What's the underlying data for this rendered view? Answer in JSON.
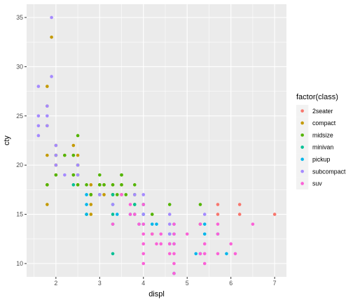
{
  "chart_data": {
    "type": "scatter",
    "xlabel": "displ",
    "ylabel": "cty",
    "xlim": [
      1.33,
      7.27
    ],
    "ylim": [
      8.65,
      36.35
    ],
    "x_ticks": [
      "2",
      "3",
      "4",
      "5",
      "6",
      "7"
    ],
    "y_ticks": [
      "10",
      "15",
      "20",
      "25",
      "30",
      "35"
    ],
    "x_tick_values": [
      2,
      3,
      4,
      5,
      6,
      7
    ],
    "y_tick_values": [
      10,
      15,
      20,
      25,
      30,
      35
    ],
    "grid": true,
    "legend": {
      "title": "factor(class)",
      "position": "right"
    },
    "series": [
      {
        "name": "2seater",
        "color": "#F8766D",
        "points": [
          [
            5.7,
            16
          ],
          [
            5.7,
            15
          ],
          [
            6.2,
            15
          ],
          [
            6.2,
            16
          ],
          [
            7.0,
            15
          ]
        ]
      },
      {
        "name": "compact",
        "color": "#C49A00",
        "points": [
          [
            1.8,
            18
          ],
          [
            1.8,
            21
          ],
          [
            2.0,
            20
          ],
          [
            2.0,
            21
          ],
          [
            2.8,
            16
          ],
          [
            2.8,
            18
          ],
          [
            3.1,
            18
          ],
          [
            1.8,
            18
          ],
          [
            1.8,
            16
          ],
          [
            2.0,
            20
          ],
          [
            2.0,
            19
          ],
          [
            2.8,
            15
          ],
          [
            2.8,
            17
          ],
          [
            3.1,
            17
          ],
          [
            1.8,
            24
          ],
          [
            1.8,
            26
          ],
          [
            1.8,
            28
          ],
          [
            1.9,
            33
          ],
          [
            2.0,
            21
          ],
          [
            2.0,
            22
          ],
          [
            2.0,
            20
          ],
          [
            2.2,
            21
          ],
          [
            2.4,
            21
          ],
          [
            2.4,
            22
          ],
          [
            2.5,
            20
          ],
          [
            2.5,
            21
          ],
          [
            2.5,
            18
          ],
          [
            2.4,
            19
          ],
          [
            3.0,
            18
          ],
          [
            3.3,
            18
          ],
          [
            3.3,
            17
          ],
          [
            3.5,
            18
          ],
          [
            2.8,
            17
          ],
          [
            3.5,
            17
          ],
          [
            4.2,
            13
          ]
        ]
      },
      {
        "name": "midsize",
        "color": "#53B400",
        "points": [
          [
            2.4,
            19
          ],
          [
            2.4,
            21
          ],
          [
            2.5,
            19
          ],
          [
            2.5,
            20
          ],
          [
            2.5,
            23
          ],
          [
            2.7,
            18
          ],
          [
            2.8,
            17
          ],
          [
            3.0,
            19
          ],
          [
            3.0,
            18
          ],
          [
            3.1,
            18
          ],
          [
            3.3,
            17
          ],
          [
            3.4,
            17
          ],
          [
            3.5,
            19
          ],
          [
            3.5,
            18
          ],
          [
            3.8,
            18
          ],
          [
            3.8,
            17
          ],
          [
            3.8,
            16
          ],
          [
            2.0,
            19
          ],
          [
            2.0,
            21
          ],
          [
            2.2,
            21
          ],
          [
            2.5,
            18
          ],
          [
            3.0,
            18
          ],
          [
            3.3,
            18
          ],
          [
            3.5,
            19
          ],
          [
            3.6,
            17
          ],
          [
            4.0,
            16
          ],
          [
            4.2,
            15
          ],
          [
            4.6,
            16
          ],
          [
            5.3,
            16
          ],
          [
            5.3,
            14
          ],
          [
            1.8,
            18
          ],
          [
            2.7,
            15
          ]
        ]
      },
      {
        "name": "minivan",
        "color": "#00C094",
        "points": [
          [
            2.4,
            18
          ],
          [
            3.0,
            17
          ],
          [
            3.3,
            17
          ],
          [
            3.3,
            16
          ],
          [
            3.3,
            15
          ],
          [
            3.3,
            14
          ],
          [
            3.3,
            11
          ],
          [
            3.8,
            16
          ],
          [
            3.8,
            15
          ],
          [
            4.0,
            15
          ]
        ]
      },
      {
        "name": "pickup",
        "color": "#00B6EB",
        "points": [
          [
            2.7,
            15
          ],
          [
            2.7,
            16
          ],
          [
            2.7,
            17
          ],
          [
            3.4,
            15
          ],
          [
            3.7,
            15
          ],
          [
            3.9,
            14
          ],
          [
            4.0,
            14
          ],
          [
            4.2,
            14
          ],
          [
            4.6,
            13
          ],
          [
            4.7,
            13
          ],
          [
            4.7,
            12
          ],
          [
            5.2,
            11
          ],
          [
            5.3,
            11
          ],
          [
            5.4,
            13
          ],
          [
            5.7,
            13
          ],
          [
            5.9,
            11
          ],
          [
            4.7,
            9
          ],
          [
            4.0,
            15
          ],
          [
            4.0,
            16
          ],
          [
            4.3,
            14
          ],
          [
            4.7,
            14
          ],
          [
            5.4,
            14
          ],
          [
            4.6,
            12
          ]
        ]
      },
      {
        "name": "subcompact",
        "color": "#A58AFF",
        "points": [
          [
            1.6,
            28
          ],
          [
            1.6,
            25
          ],
          [
            1.6,
            24
          ],
          [
            1.6,
            23
          ],
          [
            1.8,
            26
          ],
          [
            1.8,
            25
          ],
          [
            1.8,
            24
          ],
          [
            1.9,
            35
          ],
          [
            1.9,
            29
          ],
          [
            2.0,
            20
          ],
          [
            2.0,
            21
          ],
          [
            2.0,
            22
          ],
          [
            2.2,
            19
          ],
          [
            2.5,
            19
          ],
          [
            2.5,
            20
          ],
          [
            3.0,
            17
          ],
          [
            3.3,
            16
          ],
          [
            3.8,
            17
          ],
          [
            4.0,
            17
          ],
          [
            4.0,
            15
          ],
          [
            4.6,
            15
          ],
          [
            4.6,
            13
          ],
          [
            4.6,
            14
          ],
          [
            5.4,
            15
          ]
        ]
      },
      {
        "name": "suv",
        "color": "#FB61D7",
        "points": [
          [
            3.3,
            14
          ],
          [
            3.7,
            15
          ],
          [
            3.8,
            15
          ],
          [
            3.9,
            14
          ],
          [
            4.0,
            14
          ],
          [
            4.0,
            16
          ],
          [
            4.0,
            13
          ],
          [
            4.0,
            12
          ],
          [
            4.0,
            10
          ],
          [
            4.2,
            13
          ],
          [
            4.3,
            12
          ],
          [
            4.4,
            12
          ],
          [
            4.6,
            12
          ],
          [
            4.6,
            11
          ],
          [
            4.7,
            13
          ],
          [
            4.7,
            12
          ],
          [
            4.7,
            14
          ],
          [
            4.7,
            10
          ],
          [
            4.7,
            11
          ],
          [
            4.7,
            9
          ],
          [
            5.0,
            13
          ],
          [
            5.3,
            11
          ],
          [
            5.3,
            14
          ],
          [
            5.4,
            12
          ],
          [
            5.4,
            11
          ],
          [
            5.4,
            10
          ],
          [
            5.7,
            14
          ],
          [
            5.7,
            13
          ],
          [
            5.7,
            11
          ],
          [
            6.0,
            12
          ],
          [
            6.1,
            11
          ],
          [
            6.5,
            14
          ],
          [
            3.5,
            17
          ],
          [
            3.7,
            16
          ],
          [
            4.0,
            11
          ],
          [
            4.4,
            13
          ]
        ]
      }
    ]
  }
}
